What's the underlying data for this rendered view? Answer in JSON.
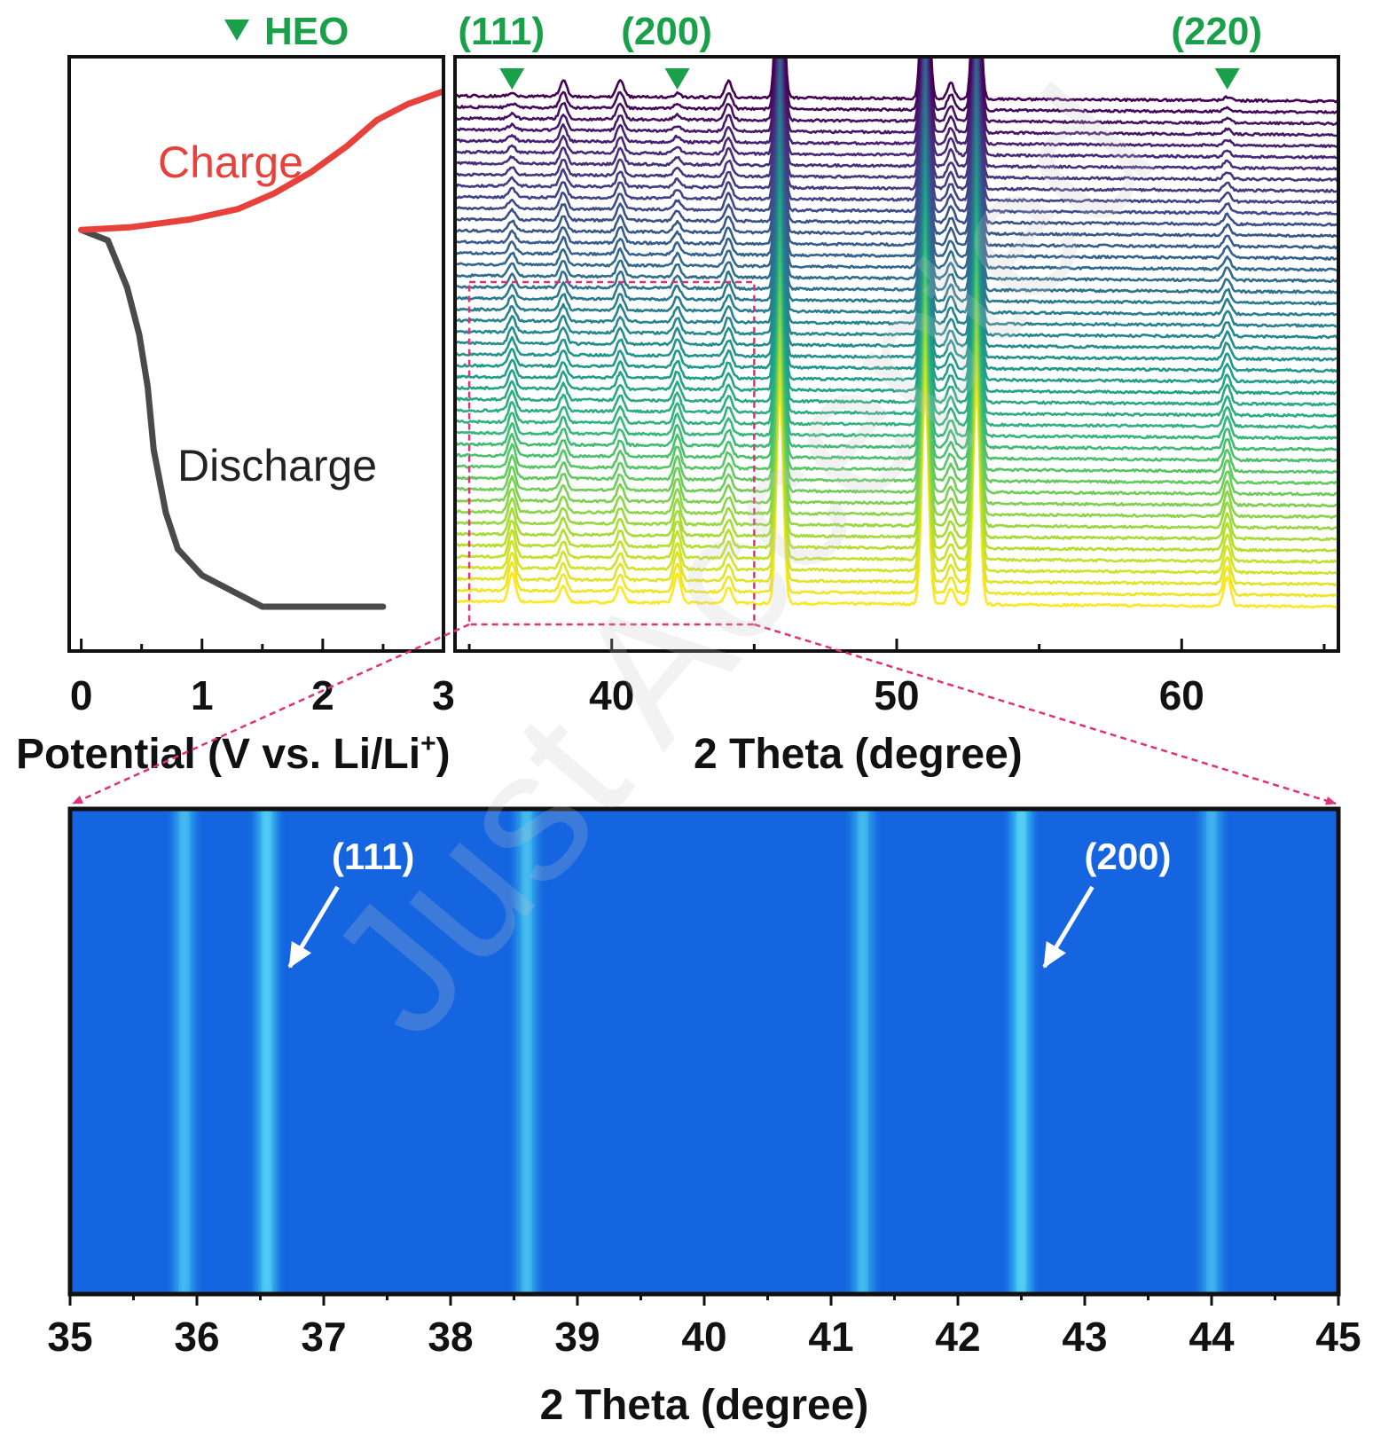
{
  "watermark": "Just Accepted",
  "colors": {
    "charge": "#e8413c",
    "discharge": "#4a4a4a",
    "heo_marker": "#1aa04a",
    "zoom_box": "#e0307a",
    "heatmap_bg": "#1565e0",
    "heatmap_band": "#3fd0f0",
    "arrow": "#ffffff"
  },
  "chart_data": [
    {
      "id": "voltage-profile",
      "type": "line",
      "xlabel": "Potential (V vs. Li/Li",
      "xlabel_sup": "+",
      "xlabel_end": ")",
      "xlim": [
        -0.1,
        3.0
      ],
      "x_ticks": [
        0,
        1,
        2,
        3
      ],
      "x_tick_labels": [
        "0",
        "1",
        "2",
        "3"
      ],
      "time_axis": "vertical, time increasing downward (bottom = start of discharge)",
      "header_marker_label": "HEO",
      "series": [
        {
          "name": "Discharge",
          "label": "Discharge",
          "points": [
            [
              2.5,
              0.0
            ],
            [
              1.5,
              0.0
            ],
            [
              1.0,
              0.06
            ],
            [
              0.8,
              0.11
            ],
            [
              0.7,
              0.18
            ],
            [
              0.6,
              0.3
            ],
            [
              0.55,
              0.42
            ],
            [
              0.48,
              0.52
            ],
            [
              0.38,
              0.61
            ],
            [
              0.22,
              0.7
            ],
            [
              0.0,
              0.72
            ]
          ]
        },
        {
          "name": "Charge",
          "label": "Charge",
          "points": [
            [
              0.0,
              0.72
            ],
            [
              0.4,
              0.725
            ],
            [
              0.9,
              0.74
            ],
            [
              1.3,
              0.76
            ],
            [
              1.6,
              0.79
            ],
            [
              1.9,
              0.83
            ],
            [
              2.2,
              0.88
            ],
            [
              2.45,
              0.93
            ],
            [
              2.7,
              0.96
            ],
            [
              3.0,
              0.985
            ]
          ]
        }
      ]
    },
    {
      "id": "xrd-waterfall",
      "type": "line",
      "xlabel": "2 Theta (degree)",
      "xlim": [
        34.5,
        65.5
      ],
      "x_ticks": [
        40,
        50,
        60
      ],
      "x_tick_labels": [
        "40",
        "50",
        "60"
      ],
      "n_patterns": 46,
      "colormap": "viridis (yellow = first scan at bottom, purple = last scan at top)",
      "peaks": [
        {
          "position": 36.5,
          "label": "(111)",
          "heo": true
        },
        {
          "position": 38.3,
          "heo": false
        },
        {
          "position": 40.3,
          "heo": false
        },
        {
          "position": 42.3,
          "label": "(200)",
          "heo": true
        },
        {
          "position": 44.1,
          "heo": false
        },
        {
          "position": 45.9,
          "heo": false,
          "strong": true
        },
        {
          "position": 51.0,
          "heo": false,
          "strong": true
        },
        {
          "position": 51.9,
          "heo": false
        },
        {
          "position": 52.8,
          "heo": false,
          "strong": true
        },
        {
          "position": 61.6,
          "label": "(220)",
          "heo": true
        }
      ],
      "zoom_region": [
        35,
        45
      ]
    },
    {
      "id": "xrd-contour",
      "type": "heatmap",
      "xlabel": "2 Theta (degree)",
      "xlim": [
        35,
        45
      ],
      "x_ticks": [
        35,
        36,
        37,
        38,
        39,
        40,
        41,
        42,
        43,
        44,
        45
      ],
      "x_tick_labels": [
        "35",
        "36",
        "37",
        "38",
        "39",
        "40",
        "41",
        "42",
        "43",
        "44",
        "45"
      ],
      "bands": [
        {
          "position": 35.9,
          "intensity": 0.55
        },
        {
          "position": 36.55,
          "intensity": 0.9,
          "label": "(111)"
        },
        {
          "position": 38.6,
          "intensity": 0.6
        },
        {
          "position": 41.25,
          "intensity": 0.55
        },
        {
          "position": 42.5,
          "intensity": 1.0,
          "label": "(200)"
        },
        {
          "position": 44.0,
          "intensity": 0.45
        }
      ]
    }
  ]
}
